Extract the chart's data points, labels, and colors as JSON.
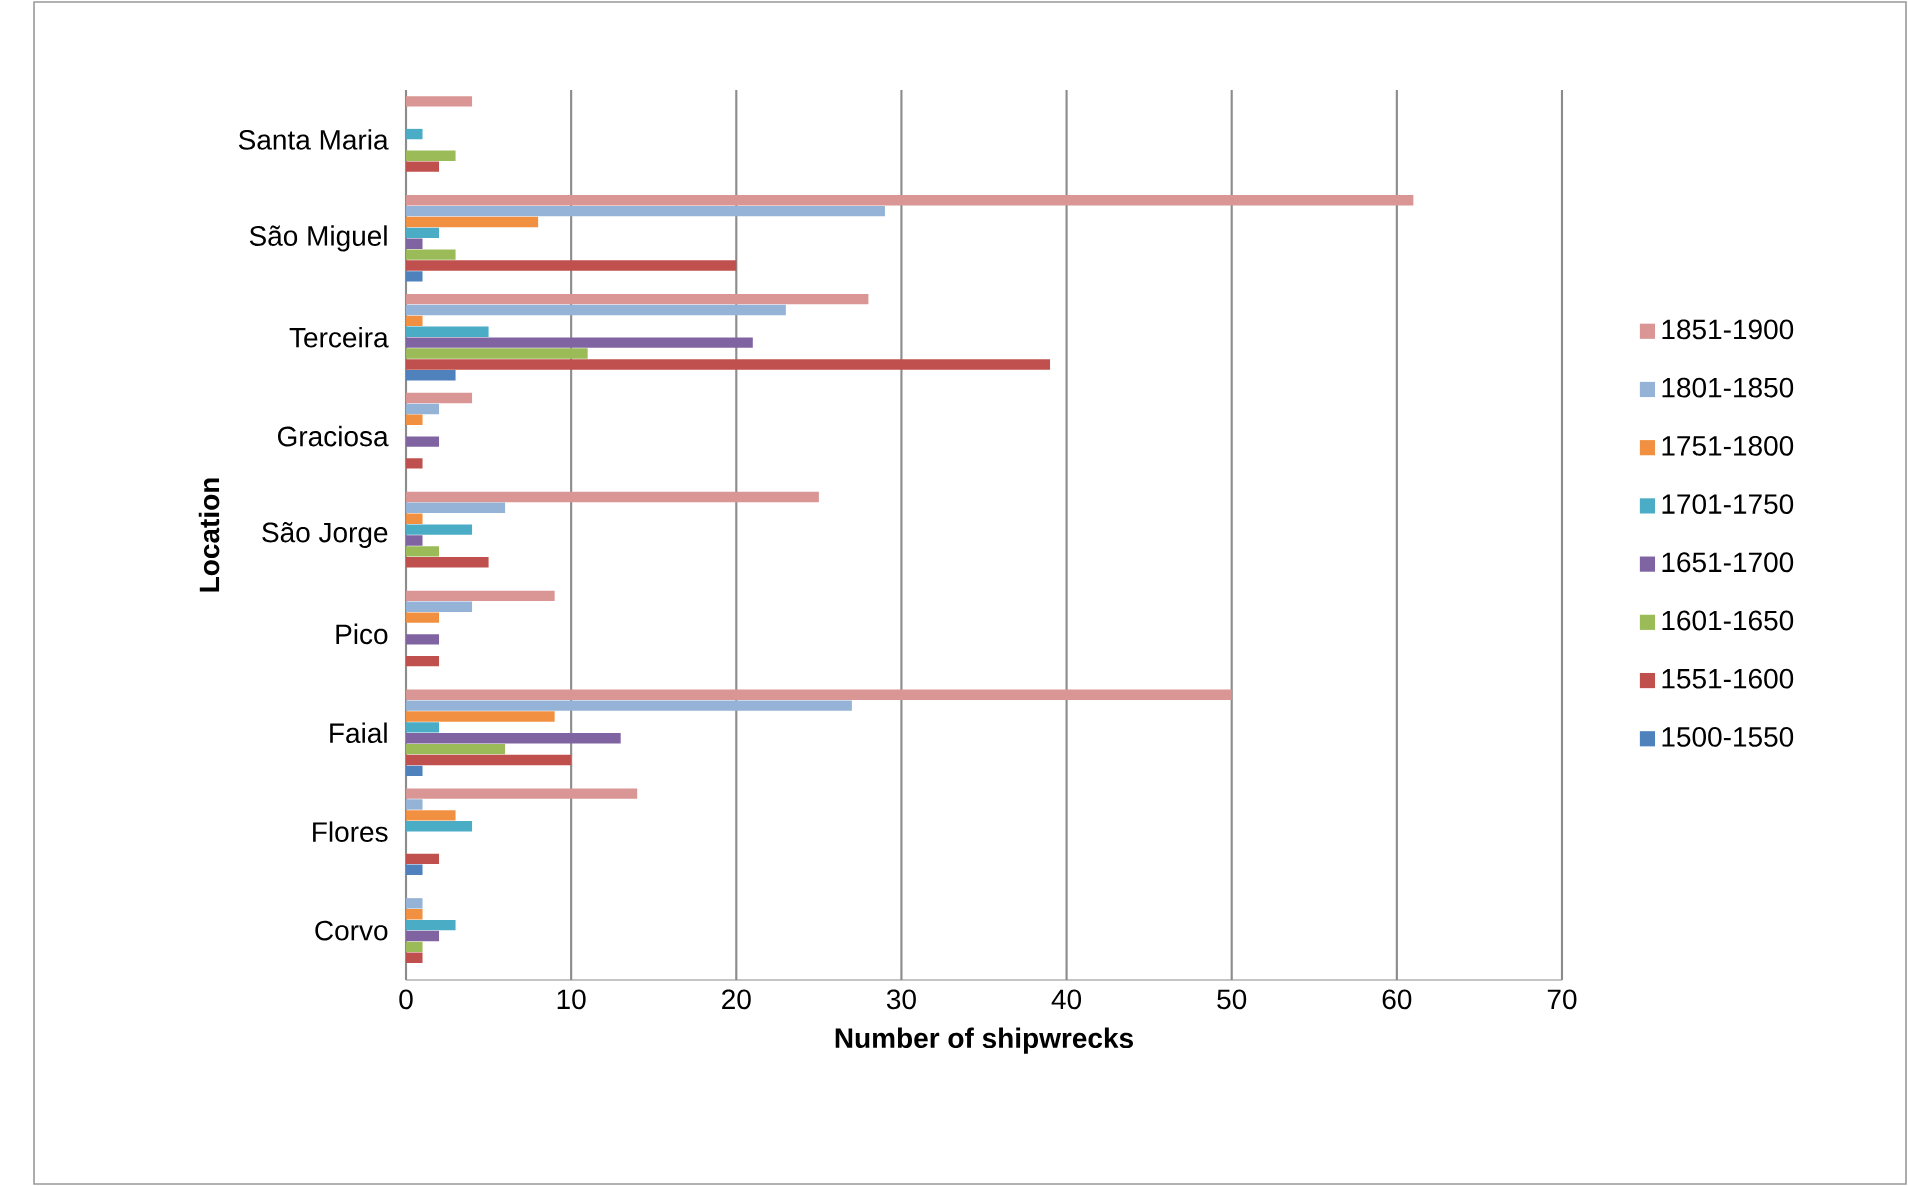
{
  "chart_data": {
    "type": "bar",
    "orientation": "horizontal",
    "xlabel": "Number of shipwrecks",
    "ylabel": "Location",
    "categories": [
      "Santa Maria",
      "São Miguel",
      "Terceira",
      "Graciosa",
      "São Jorge",
      "Pico",
      "Faial",
      "Flores",
      "Corvo"
    ],
    "series": [
      {
        "name": "1851-1900",
        "color": "#d99694",
        "values": [
          4,
          61,
          28,
          4,
          25,
          9,
          50,
          14,
          0
        ]
      },
      {
        "name": "1801-1850",
        "color": "#95b3d7",
        "values": [
          0,
          29,
          23,
          2,
          6,
          4,
          27,
          1,
          1
        ]
      },
      {
        "name": "1751-1800",
        "color": "#f09040",
        "values": [
          0,
          8,
          1,
          1,
          1,
          2,
          9,
          3,
          1
        ]
      },
      {
        "name": "1701-1750",
        "color": "#4bacc6",
        "values": [
          1,
          2,
          5,
          0,
          4,
          0,
          2,
          4,
          3
        ]
      },
      {
        "name": "1651-1700",
        "color": "#8064a2",
        "values": [
          0,
          1,
          21,
          2,
          1,
          2,
          13,
          0,
          2
        ]
      },
      {
        "name": "1601-1650",
        "color": "#9bbb59",
        "values": [
          3,
          3,
          11,
          0,
          2,
          0,
          6,
          0,
          1
        ]
      },
      {
        "name": "1551-1600",
        "color": "#c0504d",
        "values": [
          2,
          20,
          39,
          1,
          5,
          2,
          10,
          2,
          1
        ]
      },
      {
        "name": "1500-1550",
        "color": "#4f81bd",
        "values": [
          0,
          1,
          3,
          0,
          0,
          0,
          1,
          1,
          0
        ]
      }
    ],
    "xlim": [
      0,
      70
    ],
    "xticks": [
      0,
      10,
      20,
      30,
      40,
      50,
      60,
      70
    ],
    "grid": "x",
    "legend": "right"
  }
}
